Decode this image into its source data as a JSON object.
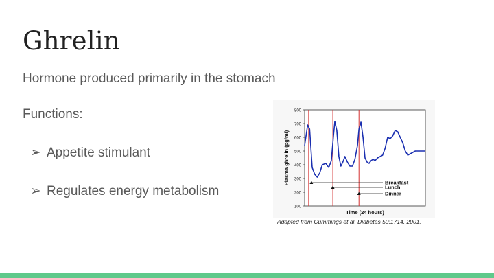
{
  "slide": {
    "title": "Ghrelin",
    "subtitle": "Hormone produced primarily in the stomach",
    "functions_label": "Functions:",
    "bullets": [
      "Appetite stimulant",
      "Regulates energy metabolism"
    ],
    "bullet_glyph": "➢",
    "accent_color": "#5fc98b"
  },
  "figure": {
    "caption": "Adapted from Cummings et al.  Diabetes 50:1714, 2001.",
    "chart_data": {
      "type": "line",
      "xlabel": "Time (24 hours)",
      "ylabel": "Plasma ghrelin (pg/ml)",
      "ylim": [
        100,
        800
      ],
      "yticks": [
        "800",
        "700",
        "600",
        "500",
        "400",
        "300",
        "200",
        "100"
      ],
      "xlim": [
        0,
        24
      ],
      "line_color": "#1a2fb0",
      "marker_color": "#d43030",
      "series": [
        {
          "x": [
            0,
            0.6,
            1.0,
            1.5,
            2.0,
            2.5,
            3.0,
            3.5,
            4.2,
            4.8,
            5.3,
            5.7,
            6.0,
            6.4,
            6.8,
            7.2,
            7.6,
            8.0,
            8.5,
            9.0,
            9.5,
            10.0,
            10.5,
            10.8,
            11.2,
            11.6,
            12.0,
            12.4,
            12.8,
            13.2,
            13.6,
            14.0,
            14.5,
            15.0,
            15.5,
            16.0,
            16.5,
            17.0,
            17.5,
            18.0,
            18.5,
            19.0,
            19.5,
            20.0,
            20.5,
            21.0,
            21.5,
            22.0,
            22.5,
            23.0,
            23.5,
            24.0
          ],
          "values": [
            540,
            690,
            660,
            380,
            330,
            310,
            340,
            400,
            410,
            380,
            430,
            600,
            715,
            650,
            460,
            390,
            420,
            460,
            420,
            390,
            390,
            440,
            540,
            660,
            710,
            600,
            450,
            420,
            410,
            430,
            440,
            430,
            450,
            460,
            470,
            520,
            600,
            590,
            610,
            650,
            640,
            600,
            560,
            500,
            470,
            480,
            490,
            500,
            500,
            500,
            500,
            500
          ]
        }
      ],
      "meals": [
        {
          "label": "Breakfast",
          "x": 0.8
        },
        {
          "label": "Lunch",
          "x": 5.6
        },
        {
          "label": "Dinner",
          "x": 10.8
        }
      ]
    }
  }
}
